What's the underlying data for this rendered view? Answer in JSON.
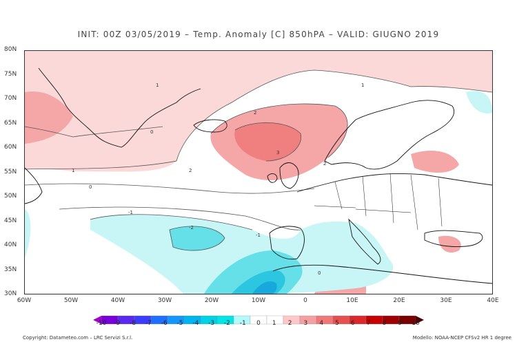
{
  "title": "INIT: 00Z 03/05/2019 – Temp. Anomaly [C] 850hPA – VALID: GIUGNO 2019",
  "lat_labels": [
    "80N",
    "75N",
    "70N",
    "65N",
    "60N",
    "55N",
    "50N",
    "45N",
    "40N",
    "35N",
    "30N"
  ],
  "lon_labels": [
    "60W",
    "50W",
    "40W",
    "30W",
    "20W",
    "10W",
    "0",
    "10E",
    "20E",
    "30E",
    "40E"
  ],
  "colorbar": {
    "labels": [
      "-10",
      "-9",
      "-8",
      "-7",
      "-6",
      "-5",
      "-4",
      "-3",
      "-2",
      "-1",
      "0",
      "1",
      "2",
      "3",
      "4",
      "5",
      "6",
      "7",
      "8",
      "9",
      "10"
    ],
    "colors": [
      "#a000c8",
      "#7800dc",
      "#5a28f0",
      "#3c3cff",
      "#1e6eff",
      "#1496ff",
      "#00b4f0",
      "#00d2e6",
      "#00e6e6",
      "#b4fafa",
      "#ffffff",
      "#ffffff",
      "#ffc8c8",
      "#f5a0a0",
      "#f07878",
      "#e65050",
      "#dc2828",
      "#c80000",
      "#a00000",
      "#780000",
      "#500000"
    ]
  },
  "contour_labels": [
    "1",
    "2",
    "3",
    "2",
    "1",
    "0",
    "-1",
    "-2",
    "0",
    "-1",
    "2",
    "1",
    "0"
  ],
  "footer_left": "Copyright: Datameteo.com – LRC Servizi S.r.l.",
  "footer_right": "Modello: NOAA-NCEP CFSv2 HR 1 degree"
}
